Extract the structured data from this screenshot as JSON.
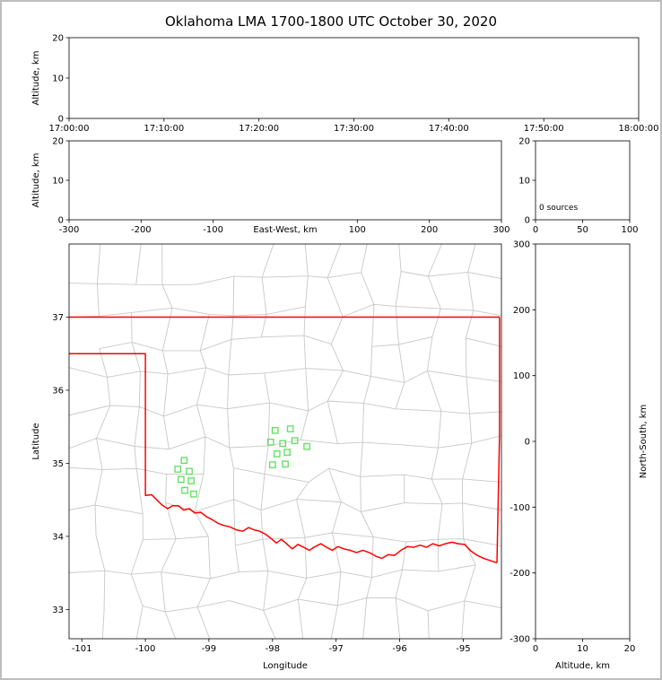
{
  "figure": {
    "title": "Oklahoma LMA 1700-1800 UTC October 30, 2020"
  },
  "colors": {
    "background": "#ffffff",
    "outer_border": "#bdbdbd",
    "axis_line": "#000000",
    "county_line": "#c8c8c8",
    "state_border": "#ff0000",
    "station_marker": "#5de05d"
  },
  "chart_data": [
    {
      "id": "time_height",
      "name": "Altitude vs time panel",
      "type": "scatter",
      "xlabel": "",
      "ylabel": "Altitude, km",
      "xlim": [
        0,
        3600
      ],
      "ylim": [
        0,
        20
      ],
      "xticks": {
        "values": [
          0,
          600,
          1200,
          1800,
          2400,
          3000,
          3600
        ],
        "labels": [
          "17:00:00",
          "17:10:00",
          "17:20:00",
          "17:30:00",
          "17:40:00",
          "17:50:00",
          "18:00:00"
        ]
      },
      "yticks": {
        "values": [
          0,
          10,
          20
        ],
        "labels": [
          "0",
          "10",
          "20"
        ]
      },
      "points": []
    },
    {
      "id": "ew_height",
      "name": "Altitude vs east-west distance panel",
      "type": "scatter",
      "xlabel": "East-West, km",
      "xlabel_inline_at": 0,
      "ylabel": "Altitude, km",
      "xlim": [
        -300,
        300
      ],
      "ylim": [
        0,
        20
      ],
      "xticks": {
        "values": [
          -300,
          -200,
          -100,
          100,
          200,
          300
        ],
        "labels": [
          "-300",
          "-200",
          "-100",
          "100",
          "200",
          "300"
        ]
      },
      "yticks": {
        "values": [
          0,
          10,
          20
        ],
        "labels": [
          "0",
          "10",
          "20"
        ]
      },
      "points": []
    },
    {
      "id": "alt_histogram",
      "name": "Source count histogram panel",
      "type": "line",
      "xlabel": "",
      "ylabel": "",
      "annotation": "0 sources",
      "xlim": [
        0,
        100
      ],
      "ylim": [
        0,
        20
      ],
      "xticks": {
        "values": [
          0,
          50,
          100
        ],
        "labels": [
          "0",
          "50",
          "100"
        ]
      },
      "yticks": {
        "values": [
          0,
          10,
          20
        ],
        "labels": [
          "0",
          "10",
          "20"
        ]
      },
      "points": []
    },
    {
      "id": "plan_view_map",
      "name": "Plan view map of Oklahoma",
      "type": "scatter",
      "xlabel": "Longitude",
      "ylabel": "Latitude",
      "xlim": [
        -101.2,
        -94.4
      ],
      "ylim": [
        32.6,
        38.0
      ],
      "xticks": {
        "values": [
          -101,
          -100,
          -99,
          -98,
          -97,
          -96,
          -95
        ],
        "labels": [
          "-101",
          "-100",
          "-99",
          "-98",
          "-97",
          "-96",
          "-95"
        ]
      },
      "yticks": {
        "values": [
          33,
          34,
          35,
          36,
          37
        ],
        "labels": [
          "33",
          "34",
          "35",
          "36",
          "37"
        ]
      },
      "stations": [
        [
          -97.96,
          35.45
        ],
        [
          -97.72,
          35.47
        ],
        [
          -98.03,
          35.29
        ],
        [
          -97.84,
          35.27
        ],
        [
          -97.65,
          35.31
        ],
        [
          -97.93,
          35.13
        ],
        [
          -97.77,
          35.15
        ],
        [
          -98.0,
          34.98
        ],
        [
          -97.8,
          34.99
        ],
        [
          -97.46,
          35.23
        ],
        [
          -99.39,
          35.04
        ],
        [
          -99.49,
          34.92
        ],
        [
          -99.31,
          34.89
        ],
        [
          -99.44,
          34.78
        ],
        [
          -99.28,
          34.76
        ],
        [
          -99.38,
          34.63
        ],
        [
          -99.24,
          34.58
        ]
      ],
      "state_border_paths": [
        [
          [
            -101.2,
            37.0
          ],
          [
            -94.43,
            37.0
          ]
        ],
        [
          [
            -94.43,
            37.0
          ],
          [
            -94.43,
            35.4
          ],
          [
            -94.47,
            33.64
          ]
        ],
        [
          [
            -101.2,
            36.5
          ],
          [
            -100.0,
            36.5
          ],
          [
            -100.0,
            34.56
          ],
          [
            -99.9,
            34.57
          ],
          [
            -99.82,
            34.5
          ],
          [
            -99.74,
            34.43
          ],
          [
            -99.65,
            34.38
          ],
          [
            -99.57,
            34.42
          ],
          [
            -99.48,
            34.42
          ],
          [
            -99.4,
            34.36
          ],
          [
            -99.31,
            34.38
          ],
          [
            -99.22,
            34.32
          ],
          [
            -99.13,
            34.33
          ],
          [
            -99.04,
            34.27
          ],
          [
            -98.95,
            34.23
          ],
          [
            -98.86,
            34.18
          ],
          [
            -98.77,
            34.15
          ],
          [
            -98.67,
            34.13
          ],
          [
            -98.57,
            34.09
          ],
          [
            -98.47,
            34.07
          ],
          [
            -98.38,
            34.12
          ],
          [
            -98.29,
            34.09
          ],
          [
            -98.2,
            34.07
          ],
          [
            -98.11,
            34.03
          ],
          [
            -98.02,
            33.97
          ],
          [
            -97.94,
            33.91
          ],
          [
            -97.86,
            33.96
          ],
          [
            -97.78,
            33.9
          ],
          [
            -97.69,
            33.83
          ],
          [
            -97.6,
            33.89
          ],
          [
            -97.51,
            33.85
          ],
          [
            -97.42,
            33.81
          ],
          [
            -97.33,
            33.86
          ],
          [
            -97.24,
            33.9
          ],
          [
            -97.15,
            33.85
          ],
          [
            -97.06,
            33.81
          ],
          [
            -96.97,
            33.86
          ],
          [
            -96.88,
            33.83
          ],
          [
            -96.78,
            33.81
          ],
          [
            -96.68,
            33.78
          ],
          [
            -96.58,
            33.81
          ],
          [
            -96.48,
            33.78
          ],
          [
            -96.38,
            33.73
          ],
          [
            -96.28,
            33.7
          ],
          [
            -96.18,
            33.75
          ],
          [
            -96.08,
            33.74
          ],
          [
            -95.98,
            33.81
          ],
          [
            -95.88,
            33.86
          ],
          [
            -95.78,
            33.85
          ],
          [
            -95.68,
            33.88
          ],
          [
            -95.58,
            33.85
          ],
          [
            -95.48,
            33.9
          ],
          [
            -95.38,
            33.87
          ],
          [
            -95.28,
            33.9
          ],
          [
            -95.18,
            33.92
          ],
          [
            -95.08,
            33.9
          ],
          [
            -94.98,
            33.89
          ],
          [
            -94.88,
            33.8
          ],
          [
            -94.78,
            33.74
          ],
          [
            -94.68,
            33.7
          ],
          [
            -94.58,
            33.67
          ],
          [
            -94.47,
            33.64
          ]
        ]
      ],
      "county_grid": {
        "cols": 13,
        "rows": 12,
        "seed": 20201030
      }
    },
    {
      "id": "ns_height",
      "name": "North-south distance vs altitude panel",
      "type": "scatter",
      "xlabel": "Altitude, km",
      "ylabel": "North-South, km",
      "ylabel_side": "right",
      "xlim": [
        0,
        20
      ],
      "ylim": [
        -300,
        300
      ],
      "xticks": {
        "values": [
          0,
          10,
          20
        ],
        "labels": [
          "0",
          "10",
          "20"
        ]
      },
      "yticks": {
        "values": [
          300,
          200,
          100,
          0,
          -100,
          -200,
          -300
        ],
        "labels": [
          "300",
          "200",
          "100",
          "0",
          "-100",
          "-200",
          "-300"
        ]
      },
      "points": []
    }
  ]
}
